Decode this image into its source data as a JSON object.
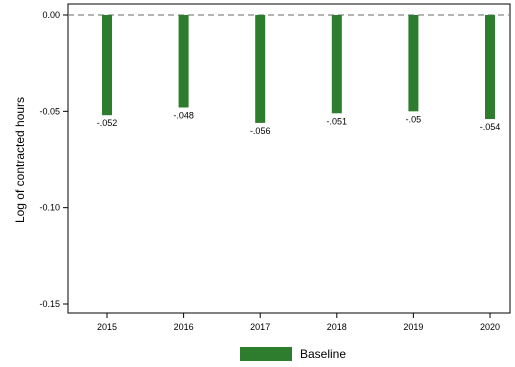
{
  "chart_data": {
    "type": "bar",
    "categories": [
      "2015",
      "2016",
      "2017",
      "2018",
      "2019",
      "2020"
    ],
    "series": [
      {
        "name": "Baseline",
        "values": [
          -0.052,
          -0.048,
          -0.056,
          -0.051,
          -0.05,
          -0.054
        ],
        "labels": [
          "-.052",
          "-.048",
          "-.056",
          "-.051",
          "-.05",
          "-.054"
        ],
        "color": "#2e7d2e"
      }
    ],
    "ylabel": "Log of contracted hours",
    "xlabel": "",
    "ylim": [
      -0.155,
      0.0
    ],
    "yticks": [
      0.0,
      -0.05,
      -0.1,
      -0.15
    ],
    "ytick_labels": [
      "0.00",
      "-0.05",
      "-0.10",
      "-0.15"
    ],
    "reference_line": {
      "y": 0.0,
      "style": "dashed",
      "color": "#888888"
    },
    "grid": false,
    "legend": {
      "position": "bottom-center"
    }
  }
}
